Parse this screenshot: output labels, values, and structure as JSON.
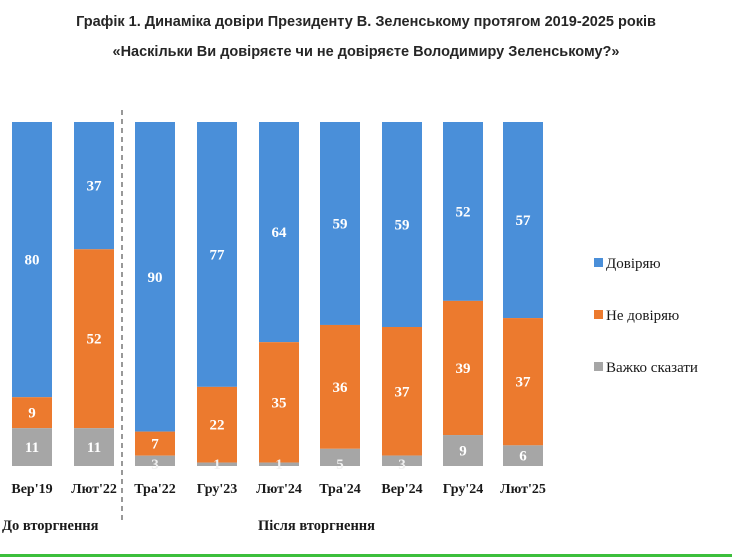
{
  "title": "Графік 1. Динаміка довіри Президенту В. Зеленському протягом 2019-2025 років",
  "subtitle": "«Наскільки Ви довіряєте чи не довіряєте Володимиру Зеленському?»",
  "chart_data": {
    "type": "bar",
    "stacked": true,
    "categories": [
      "Вер'19",
      "Лют'22",
      "Тра'22",
      "Гру'23",
      "Лют'24",
      "Тра'24",
      "Вер'24",
      "Гру'24",
      "Лют'25"
    ],
    "series": [
      {
        "name": "Довіряю",
        "color": "#4a8fd9",
        "values": [
          80,
          37,
          90,
          77,
          64,
          59,
          59,
          52,
          57
        ]
      },
      {
        "name": "Не довіряю",
        "color": "#ec7a2e",
        "values": [
          9,
          52,
          7,
          22,
          35,
          36,
          37,
          39,
          37
        ]
      },
      {
        "name": "Важко сказати",
        "color": "#a6a6a6",
        "values": [
          11,
          11,
          3,
          1,
          1,
          5,
          3,
          9,
          6
        ]
      }
    ],
    "ylim": [
      0,
      100
    ],
    "legend": "right",
    "grid": false,
    "groups": [
      {
        "label": "До вторгнення",
        "categories": [
          "Вер'19",
          "Лют'22"
        ]
      },
      {
        "label": "Після вторгнення",
        "categories": [
          "Тра'22",
          "Гру'23",
          "Лют'24",
          "Тра'24",
          "Вер'24",
          "Гру'24",
          "Лют'25"
        ]
      }
    ]
  }
}
